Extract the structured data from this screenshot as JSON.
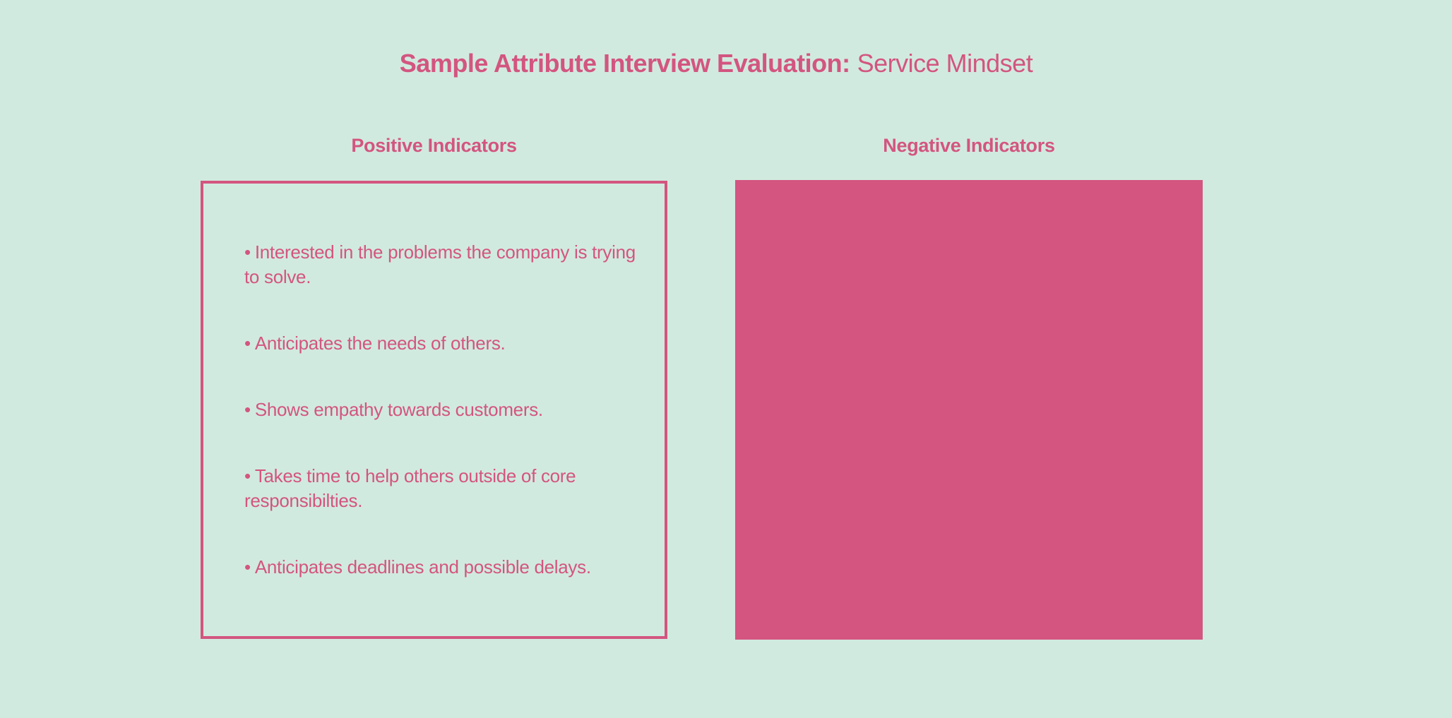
{
  "title": {
    "strong": "Sample Attribute Interview Evaluation:",
    "light": "Service Mindset"
  },
  "positive": {
    "heading": "Positive Indicators",
    "bullet": "•",
    "items": [
      "Interested in the problems the company is trying to solve.",
      "Anticipates the needs of others.",
      "Shows empathy towards customers.",
      "Takes time to help others outside of core responsibilties.",
      "Anticipates deadlines and possible delays."
    ]
  },
  "negative": {
    "heading": "Negative Indicators"
  },
  "colors": {
    "background": "#d1eadf",
    "accent": "#d35580"
  }
}
